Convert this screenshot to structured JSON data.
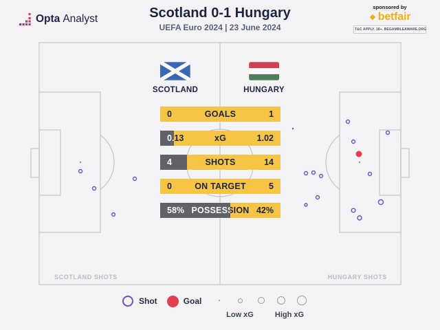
{
  "header": {
    "brand": {
      "bold": "Opta",
      "regular": "Analyst"
    },
    "title": "Scotland 0-1 Hungary",
    "subtitle": "UEFA Euro 2024 | 23 June 2024",
    "sponsor": {
      "tagline": "sponsored by",
      "name": "betfair",
      "terms": "T&C APPLY. 18+. BEGAMBLEAWARE.ORG"
    }
  },
  "teams": {
    "home": {
      "name": "SCOTLAND"
    },
    "away": {
      "name": "HUNGARY"
    }
  },
  "stats": {
    "rows": [
      {
        "label": "GOALS",
        "home": "0",
        "away": "1",
        "home_share_pct": 0
      },
      {
        "label": "xG",
        "home": "0.13",
        "away": "1.02",
        "home_share_pct": 11.3
      },
      {
        "label": "SHOTS",
        "home": "4",
        "away": "14",
        "home_share_pct": 22.2
      },
      {
        "label": "ON TARGET",
        "home": "0",
        "away": "5",
        "home_share_pct": 0
      },
      {
        "label": "POSSESSION",
        "home": "58%",
        "away": "42%",
        "home_share_pct": 58
      }
    ]
  },
  "pitch": {
    "home_shots_label": "SCOTLAND SHOTS",
    "away_shots_label": "HUNGARY SHOTS"
  },
  "legend": {
    "shot_label": "Shot",
    "goal_label": "Goal",
    "low_label": "Low xG",
    "high_label": "High xG",
    "scale_radii": [
      1.2,
      3.5,
      5,
      6,
      6.8
    ],
    "scale_x": [
      19,
      49,
      80,
      109,
      139
    ]
  },
  "colors": {
    "bar_yellow": "#f6c545",
    "bar_grey": "#606267",
    "shot_purple": "#6f52bd",
    "goal_red": "#e2404e",
    "navy": "#1c2442",
    "pitch_line": "#c5c7cc"
  },
  "chart_data": [
    {
      "type": "bar",
      "title": "Scotland 0-1 Hungary — match stats",
      "categories": [
        "GOALS",
        "xG",
        "SHOTS",
        "ON TARGET",
        "POSSESSION"
      ],
      "series": [
        {
          "name": "Scotland",
          "values": [
            0,
            0.13,
            4,
            0,
            58
          ]
        },
        {
          "name": "Hungary",
          "values": [
            1,
            1.02,
            14,
            5,
            42
          ]
        }
      ],
      "note": "Each row is one horizontal bar: grey segment width = Scotland share of the stat, yellow = Hungary share. POSSESSION values are percentages."
    },
    {
      "type": "scatter",
      "title": "Shot map",
      "x_range": [
        0,
        526
      ],
      "y_range": [
        0,
        352
      ],
      "note": "Pitch pixel coordinates, origin at pitch top-left; marker radius encodes xG; red filled marker = goal. Scotland shots on left half, Hungary shots on right half.",
      "series": [
        {
          "name": "Scotland shots",
          "marker": "shot",
          "points": [
            {
              "x": 60,
              "y": 187,
              "r": 2.5
            },
            {
              "x": 80,
              "y": 212,
              "r": 2.5
            },
            {
              "x": 139,
              "y": 198,
              "r": 2.5
            },
            {
              "x": 108,
              "y": 250,
              "r": 2.5
            }
          ]
        },
        {
          "name": "Hungary shots",
          "marker": "shot",
          "points": [
            {
              "x": 369,
              "y": 125,
              "r": 1.2
            },
            {
              "x": 449,
              "y": 115,
              "r": 2.5
            },
            {
              "x": 507,
              "y": 131,
              "r": 2.5
            },
            {
              "x": 457,
              "y": 144,
              "r": 2.5
            },
            {
              "x": 388,
              "y": 190,
              "r": 2.5
            },
            {
              "x": 399,
              "y": 189,
              "r": 2.5
            },
            {
              "x": 410,
              "y": 194,
              "r": 2.5
            },
            {
              "x": 481,
              "y": 191,
              "r": 2.5
            },
            {
              "x": 405,
              "y": 225,
              "r": 2.5
            },
            {
              "x": 388,
              "y": 236,
              "r": 2
            },
            {
              "x": 497,
              "y": 232,
              "r": 3.5
            },
            {
              "x": 457,
              "y": 244,
              "r": 2.8
            },
            {
              "x": 466,
              "y": 255,
              "r": 3
            }
          ]
        },
        {
          "name": "Hungary goal",
          "marker": "goal",
          "points": [
            {
              "x": 465,
              "y": 162,
              "r": 4.5
            }
          ]
        }
      ]
    }
  ]
}
